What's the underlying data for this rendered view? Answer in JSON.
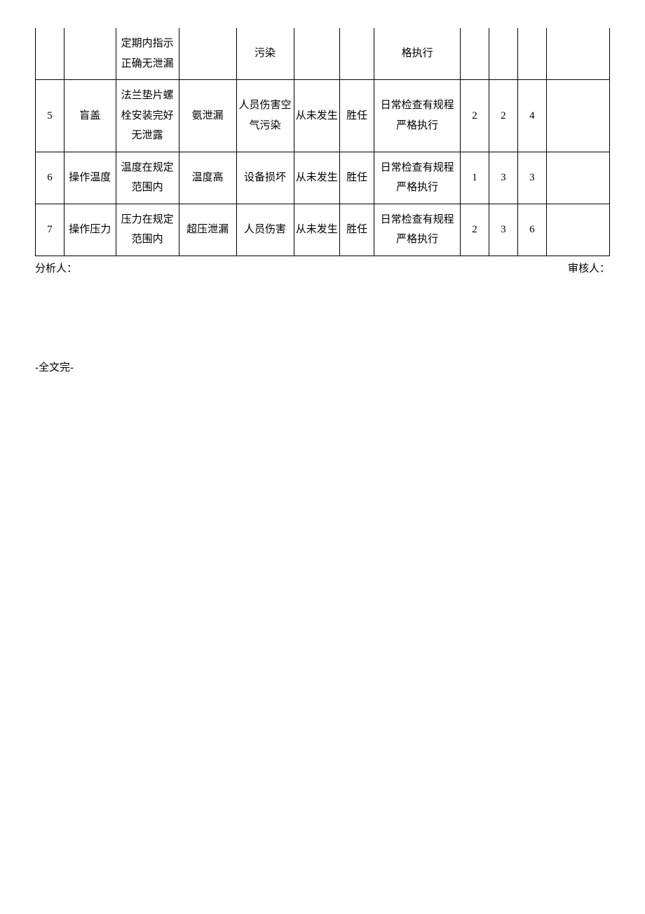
{
  "rows": [
    {
      "c0": "",
      "c1": "",
      "c2": "定期内指示正确无泄漏",
      "c3": "",
      "c4": "污染",
      "c5": "",
      "c6": "",
      "c7": "格执行",
      "c8": "",
      "c9": "",
      "c10": "",
      "c11": ""
    },
    {
      "c0": "5",
      "c1": "盲盖",
      "c2": "法兰垫片螺栓安装完好无泄露",
      "c3": "氨泄漏",
      "c4": "人员伤害空气污染",
      "c5": "从未发生",
      "c6": "胜任",
      "c7": "日常检查有规程严格执行",
      "c8": "2",
      "c9": "2",
      "c10": "4",
      "c11": ""
    },
    {
      "c0": "6",
      "c1": "操作温度",
      "c2": "温度在规定范围内",
      "c3": "温度高",
      "c4": "设备损坏",
      "c5": "从未发生",
      "c6": "胜任",
      "c7": "日常检查有规程严格执行",
      "c8": "1",
      "c9": "3",
      "c10": "3",
      "c11": ""
    },
    {
      "c0": "7",
      "c1": "操作压力",
      "c2": "压力在规定范围内",
      "c3": "超压泄漏",
      "c4": "人员伤害",
      "c5": "从未发生",
      "c6": "胜任",
      "c7": "日常检查有规程严格执行",
      "c8": "2",
      "c9": "3",
      "c10": "6",
      "c11": ""
    }
  ],
  "signatures": {
    "analyst": "分析人：",
    "reviewer": "审核人："
  },
  "end": "-全文完-"
}
